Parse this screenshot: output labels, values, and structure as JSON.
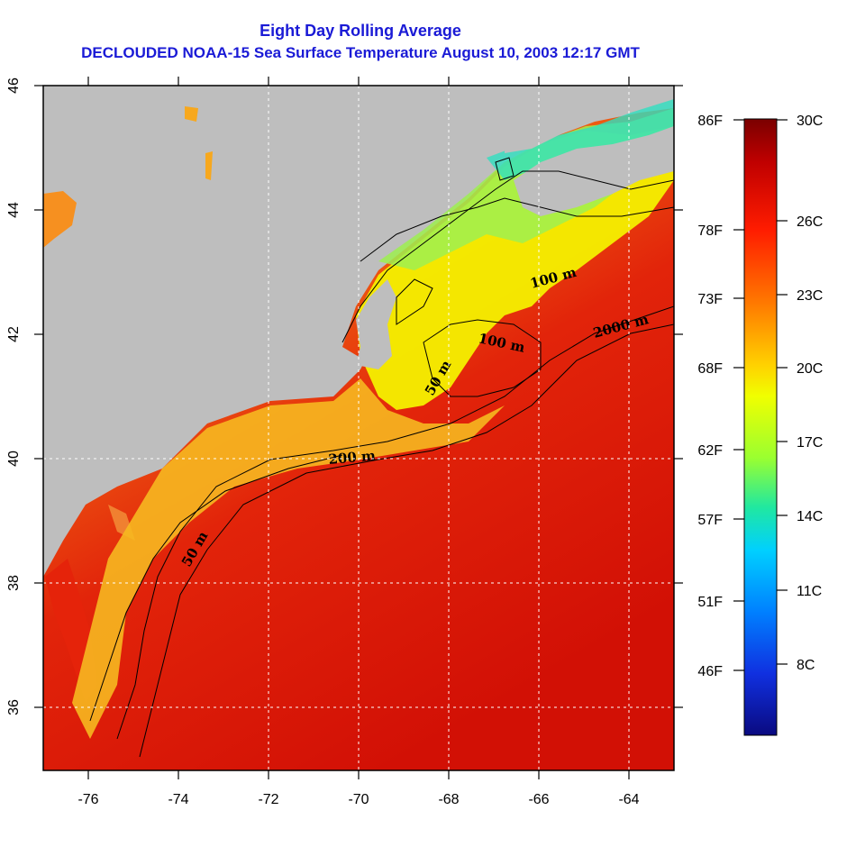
{
  "title": {
    "line1": "Eight Day Rolling Average",
    "line2": "DECLOUDED NOAA-15 Sea Surface Temperature August 10, 2003 12:17 GMT"
  },
  "axes": {
    "x_ticks": [
      "-76",
      "-74",
      "-72",
      "-70",
      "-68",
      "-66",
      "-64"
    ],
    "y_ticks": [
      "46",
      "44",
      "42",
      "40",
      "38",
      "36"
    ]
  },
  "contours": {
    "isobath_50_a": "50 m",
    "isobath_50_b": "50 m",
    "isobath_100_a": "100 m",
    "isobath_100_b": "100 m",
    "isobath_200": "200 m",
    "isobath_2000": "2000 m"
  },
  "colorbar": {
    "fahrenheit": [
      "86F",
      "78F",
      "73F",
      "68F",
      "62F",
      "57F",
      "51F",
      "46F"
    ],
    "celsius": [
      "30C",
      "26C",
      "23C",
      "20C",
      "17C",
      "14C",
      "11C",
      "8C"
    ]
  },
  "colors": {
    "land": "#bebebe",
    "title": "#1a1ad6",
    "warm": "#dd1a08",
    "cool": "#1a40d0"
  },
  "icons": {
    "map_canvas": "sst-map",
    "colorbar": "temperature-colorbar"
  }
}
